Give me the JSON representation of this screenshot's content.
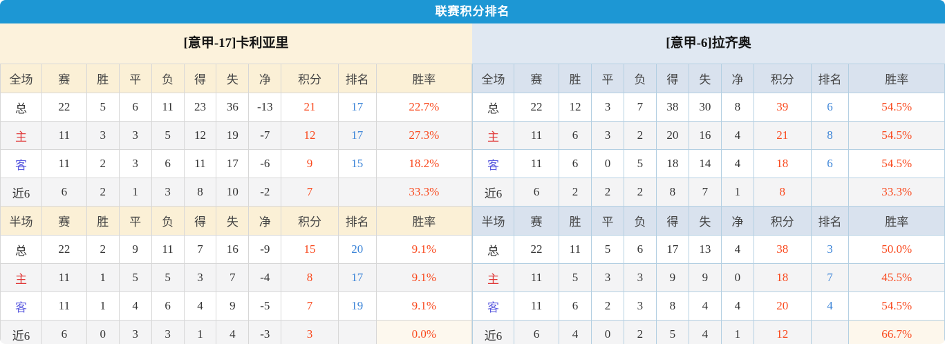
{
  "title": "联赛积分排名",
  "section_labels": {
    "full": "全场",
    "half": "半场"
  },
  "columns": [
    "赛",
    "胜",
    "平",
    "负",
    "得",
    "失",
    "净",
    "积分",
    "排名",
    "胜率"
  ],
  "colors": {
    "accent_blue": "#1d97d4",
    "points_red": "#f9491e",
    "rank_blue": "#3d85d8",
    "home_label_red": "#e03a3a",
    "away_label_blue": "#5b5bdf"
  },
  "teams": [
    {
      "name": "[意甲-17]卡利亚里",
      "full": {
        "rows": [
          {
            "label": "总",
            "values": [
              "22",
              "5",
              "6",
              "11",
              "23",
              "36",
              "-13"
            ],
            "points": "21",
            "rank": "17",
            "rate": "22.7%"
          },
          {
            "label": "主",
            "values": [
              "11",
              "3",
              "3",
              "5",
              "12",
              "19",
              "-7"
            ],
            "points": "12",
            "rank": "17",
            "rate": "27.3%"
          },
          {
            "label": "客",
            "values": [
              "11",
              "2",
              "3",
              "6",
              "11",
              "17",
              "-6"
            ],
            "points": "9",
            "rank": "15",
            "rate": "18.2%"
          },
          {
            "label": "近6",
            "values": [
              "6",
              "2",
              "1",
              "3",
              "8",
              "10",
              "-2"
            ],
            "points": "7",
            "rank": "",
            "rate": "33.3%"
          }
        ]
      },
      "half": {
        "rows": [
          {
            "label": "总",
            "values": [
              "22",
              "2",
              "9",
              "11",
              "7",
              "16",
              "-9"
            ],
            "points": "15",
            "rank": "20",
            "rate": "9.1%"
          },
          {
            "label": "主",
            "values": [
              "11",
              "1",
              "5",
              "5",
              "3",
              "7",
              "-4"
            ],
            "points": "8",
            "rank": "17",
            "rate": "9.1%"
          },
          {
            "label": "客",
            "values": [
              "11",
              "1",
              "4",
              "6",
              "4",
              "9",
              "-5"
            ],
            "points": "7",
            "rank": "19",
            "rate": "9.1%"
          },
          {
            "label": "近6",
            "values": [
              "6",
              "0",
              "3",
              "3",
              "1",
              "4",
              "-3"
            ],
            "points": "3",
            "rank": "",
            "rate": "0.0%"
          }
        ]
      }
    },
    {
      "name": "[意甲-6]拉齐奥",
      "full": {
        "rows": [
          {
            "label": "总",
            "values": [
              "22",
              "12",
              "3",
              "7",
              "38",
              "30",
              "8"
            ],
            "points": "39",
            "rank": "6",
            "rate": "54.5%"
          },
          {
            "label": "主",
            "values": [
              "11",
              "6",
              "3",
              "2",
              "20",
              "16",
              "4"
            ],
            "points": "21",
            "rank": "8",
            "rate": "54.5%"
          },
          {
            "label": "客",
            "values": [
              "11",
              "6",
              "0",
              "5",
              "18",
              "14",
              "4"
            ],
            "points": "18",
            "rank": "6",
            "rate": "54.5%"
          },
          {
            "label": "近6",
            "values": [
              "6",
              "2",
              "2",
              "2",
              "8",
              "7",
              "1"
            ],
            "points": "8",
            "rank": "",
            "rate": "33.3%"
          }
        ]
      },
      "half": {
        "rows": [
          {
            "label": "总",
            "values": [
              "22",
              "11",
              "5",
              "6",
              "17",
              "13",
              "4"
            ],
            "points": "38",
            "rank": "3",
            "rate": "50.0%"
          },
          {
            "label": "主",
            "values": [
              "11",
              "5",
              "3",
              "3",
              "9",
              "9",
              "0"
            ],
            "points": "18",
            "rank": "7",
            "rate": "45.5%"
          },
          {
            "label": "客",
            "values": [
              "11",
              "6",
              "2",
              "3",
              "8",
              "4",
              "4"
            ],
            "points": "20",
            "rank": "4",
            "rate": "54.5%"
          },
          {
            "label": "近6",
            "values": [
              "6",
              "4",
              "0",
              "2",
              "5",
              "4",
              "1"
            ],
            "points": "12",
            "rank": "",
            "rate": "66.7%"
          }
        ]
      }
    }
  ]
}
